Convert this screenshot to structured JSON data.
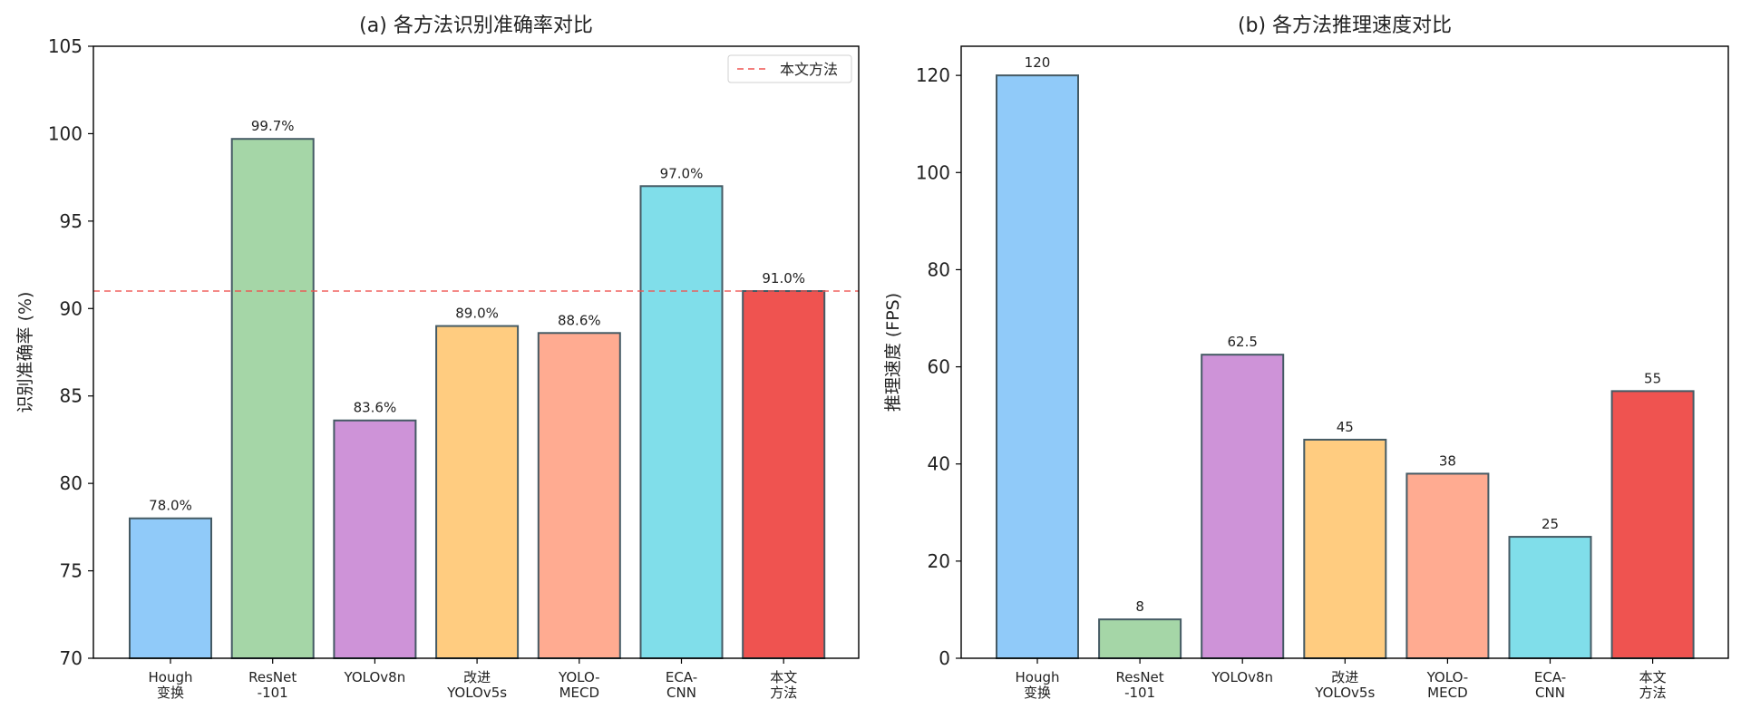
{
  "chart_data": [
    {
      "type": "bar",
      "title": "(a) 各方法识别准确率对比",
      "xlabel": "",
      "ylabel": "识别准确率 (%)",
      "ylim": [
        70,
        105
      ],
      "yticks": [
        70,
        75,
        80,
        85,
        90,
        95,
        100,
        105
      ],
      "grid": false,
      "categories": [
        "Hough\n变换",
        "ResNet\n-101",
        "YOLOv8n",
        "改进\nYOLOv5s",
        "YOLO-\nMECD",
        "ECA-\nCNN",
        "本文\n方法"
      ],
      "values": [
        78.0,
        99.7,
        83.6,
        89.0,
        88.6,
        97.0,
        91.0
      ],
      "data_labels": [
        "78.0%",
        "99.7%",
        "83.6%",
        "89.0%",
        "88.6%",
        "97.0%",
        "91.0%"
      ],
      "colors": [
        "#90CAF9",
        "#A5D6A7",
        "#CE93D8",
        "#FFCC80",
        "#FFAB91",
        "#80DEEA",
        "#EF5350"
      ],
      "reference_line": {
        "value": 91.0,
        "label": "本文方法",
        "color": "#EF5350",
        "style": "dashed"
      },
      "legend": {
        "placement": "top-right",
        "entries": [
          "本文方法"
        ]
      }
    },
    {
      "type": "bar",
      "title": "(b) 各方法推理速度对比",
      "xlabel": "",
      "ylabel": "推理速度 (FPS)",
      "ylim": [
        0,
        126
      ],
      "yticks": [
        0,
        20,
        40,
        60,
        80,
        100,
        120
      ],
      "grid": false,
      "categories": [
        "Hough\n变换",
        "ResNet\n-101",
        "YOLOv8n",
        "改进\nYOLOv5s",
        "YOLO-\nMECD",
        "ECA-\nCNN",
        "本文\n方法"
      ],
      "values": [
        120,
        8,
        62.5,
        45,
        38,
        25,
        55
      ],
      "data_labels": [
        "120",
        "8",
        "62.5",
        "45",
        "38",
        "25",
        "55"
      ],
      "colors": [
        "#90CAF9",
        "#A5D6A7",
        "#CE93D8",
        "#FFCC80",
        "#FFAB91",
        "#80DEEA",
        "#EF5350"
      ]
    }
  ],
  "style": {
    "bar_edge_color": "#455A64",
    "axis_color": "#000000"
  }
}
